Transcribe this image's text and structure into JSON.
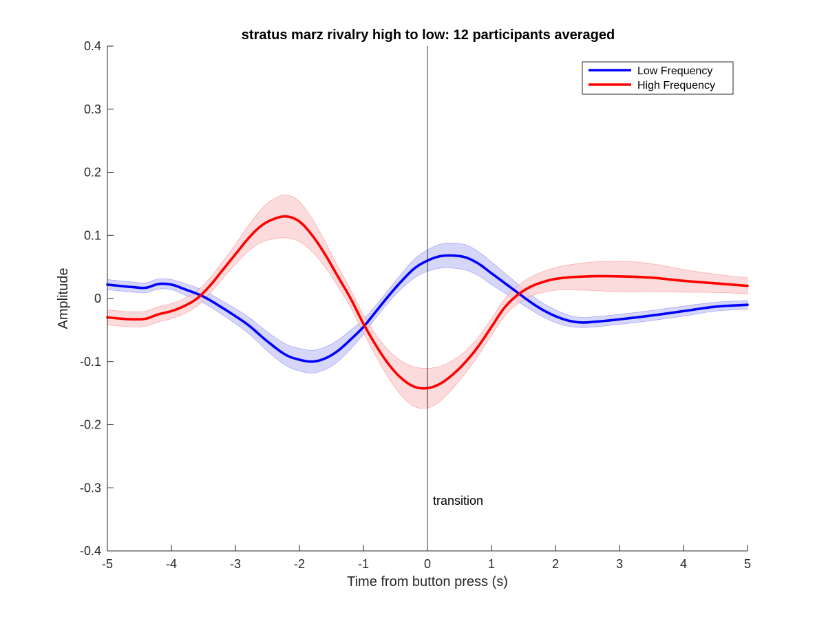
{
  "chart_data": {
    "type": "line",
    "title": "stratus marz rivalry high to low: 12 participants averaged",
    "xlabel": "Time from button press (s)",
    "ylabel": "Amplitude",
    "xlim": [
      -5,
      5
    ],
    "ylim": [
      -0.4,
      0.4
    ],
    "x_ticks": [
      -5,
      -4,
      -3,
      -2,
      -1,
      0,
      1,
      2,
      3,
      4,
      5
    ],
    "x_tick_labels": [
      "-5",
      "-4",
      "-3",
      "-2",
      "-1",
      "0",
      "1",
      "2",
      "3",
      "4",
      "5"
    ],
    "y_ticks": [
      -0.4,
      -0.3,
      -0.2,
      -0.1,
      0,
      0.1,
      0.2,
      0.3,
      0.4
    ],
    "y_tick_labels": [
      "-0.4",
      "-0.3",
      "-0.2",
      "-0.1",
      "0",
      "0.1",
      "0.2",
      "0.3",
      "0.4"
    ],
    "grid": false,
    "legend_position": "top-right",
    "annotations": [
      {
        "text": "transition",
        "x": 0
      }
    ],
    "series": [
      {
        "name": "Low Frequency",
        "color": "#0000ff",
        "band_color": "#c8c8f5",
        "x": [
          -5,
          -4.6,
          -4.4,
          -4.2,
          -4,
          -3.8,
          -3.5,
          -3.2,
          -3,
          -2.8,
          -2.5,
          -2.2,
          -2,
          -1.8,
          -1.6,
          -1.4,
          -1.2,
          -1,
          -0.8,
          -0.6,
          -0.4,
          -0.2,
          0,
          0.2,
          0.4,
          0.6,
          0.8,
          1,
          1.2,
          1.4,
          1.6,
          1.8,
          2,
          2.2,
          2.4,
          2.6,
          3,
          3.5,
          4,
          4.5,
          5
        ],
        "y": [
          0.022,
          0.018,
          0.017,
          0.023,
          0.022,
          0.015,
          0.003,
          -0.015,
          -0.028,
          -0.042,
          -0.068,
          -0.09,
          -0.097,
          -0.1,
          -0.095,
          -0.083,
          -0.065,
          -0.045,
          -0.02,
          0.005,
          0.028,
          0.048,
          0.06,
          0.067,
          0.068,
          0.065,
          0.055,
          0.04,
          0.025,
          0.01,
          -0.005,
          -0.018,
          -0.028,
          -0.035,
          -0.038,
          -0.037,
          -0.033,
          -0.027,
          -0.02,
          -0.013,
          -0.01
        ],
        "err": [
          0.008,
          0.008,
          0.008,
          0.008,
          0.008,
          0.009,
          0.01,
          0.011,
          0.012,
          0.013,
          0.015,
          0.017,
          0.018,
          0.018,
          0.018,
          0.017,
          0.015,
          0.012,
          0.01,
          0.01,
          0.012,
          0.015,
          0.017,
          0.019,
          0.02,
          0.02,
          0.019,
          0.018,
          0.016,
          0.014,
          0.012,
          0.011,
          0.01,
          0.009,
          0.008,
          0.008,
          0.008,
          0.008,
          0.008,
          0.007,
          0.007
        ]
      },
      {
        "name": "High Frequency",
        "color": "#ff0000",
        "band_color": "#f9cfcf",
        "x": [
          -5,
          -4.6,
          -4.4,
          -4.2,
          -4,
          -3.8,
          -3.6,
          -3.4,
          -3.2,
          -3,
          -2.8,
          -2.6,
          -2.4,
          -2.2,
          -2,
          -1.8,
          -1.6,
          -1.4,
          -1.2,
          -1,
          -0.8,
          -0.6,
          -0.4,
          -0.2,
          0,
          0.2,
          0.4,
          0.6,
          0.8,
          1,
          1.2,
          1.4,
          1.6,
          1.8,
          2,
          2.5,
          3,
          3.5,
          4,
          4.5,
          5
        ],
        "y": [
          -0.03,
          -0.033,
          -0.032,
          -0.025,
          -0.02,
          -0.012,
          0,
          0.02,
          0.045,
          0.07,
          0.095,
          0.115,
          0.126,
          0.13,
          0.122,
          0.1,
          0.07,
          0.035,
          0,
          -0.04,
          -0.075,
          -0.105,
          -0.127,
          -0.14,
          -0.142,
          -0.135,
          -0.12,
          -0.1,
          -0.075,
          -0.045,
          -0.015,
          0.005,
          0.018,
          0.026,
          0.031,
          0.035,
          0.035,
          0.033,
          0.028,
          0.024,
          0.02
        ]
      }
    ]
  }
}
